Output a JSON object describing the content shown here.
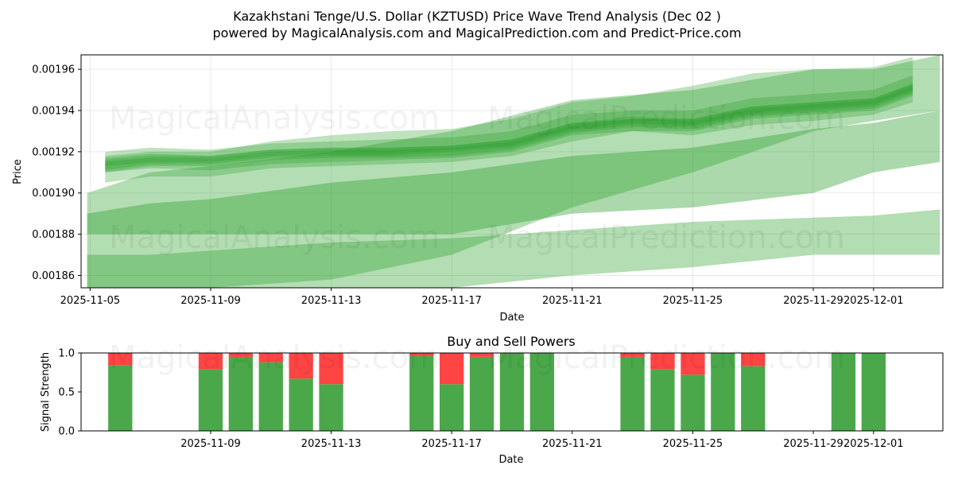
{
  "title": "Kazakhstani Tenge/U.S. Dollar (KZTUSD) Price Wave Trend Analysis (Dec 02 )",
  "subtitle": "powered by MagicalAnalysis.com and MagicalPrediction.com and Predict-Price.com",
  "watermarks": [
    "MagicalAnalysis.com",
    "MagicalPrediction.com"
  ],
  "colors": {
    "band": "#2ca02c",
    "buy": "#4aa84a",
    "sell": "#ff4444"
  },
  "chart_data": [
    {
      "type": "area",
      "title": "",
      "xlabel": "Date",
      "ylabel": "Price",
      "x_range_days": [
        -0.3,
        28.3
      ],
      "x_origin": "2025-11-05",
      "ylim": [
        0.001854,
        0.001967
      ],
      "x_ticks": [
        {
          "day": 0,
          "label": "2025-11-05"
        },
        {
          "day": 4,
          "label": "2025-11-09"
        },
        {
          "day": 8,
          "label": "2025-11-13"
        },
        {
          "day": 12,
          "label": "2025-11-17"
        },
        {
          "day": 16,
          "label": "2025-11-21"
        },
        {
          "day": 20,
          "label": "2025-11-25"
        },
        {
          "day": 24,
          "label": "2025-11-29"
        },
        {
          "day": 26,
          "label": "2025-12-01"
        }
      ],
      "y_ticks": [
        {
          "value": 0.00186,
          "label": "0.00186"
        },
        {
          "value": 0.00188,
          "label": "0.00188"
        },
        {
          "value": 0.0019,
          "label": "0.00190"
        },
        {
          "value": 0.00192,
          "label": "0.00192"
        },
        {
          "value": 0.00194,
          "label": "0.00194"
        },
        {
          "value": 0.00196,
          "label": "0.00196"
        }
      ],
      "grid": true,
      "bands": [
        {
          "name": "wide-upper",
          "opacity": 0.36,
          "x": [
            -0.1,
            2,
            4,
            8,
            12,
            16,
            20,
            24,
            26,
            28.2
          ],
          "lower": [
            0.00184,
            0.00185,
            0.00185,
            0.001858,
            0.00187,
            0.001893,
            0.00191,
            0.00193,
            0.001935,
            0.00194
          ],
          "upper": [
            0.0019,
            0.00191,
            0.001913,
            0.00192,
            0.00193,
            0.001945,
            0.00195,
            0.00196,
            0.00196,
            0.00197
          ]
        },
        {
          "name": "wide-lower",
          "opacity": 0.36,
          "x": [
            -0.1,
            2,
            4,
            8,
            12,
            16,
            20,
            24,
            26,
            28.2
          ],
          "lower": [
            0.00185,
            0.00185,
            0.00185,
            0.00185,
            0.00185,
            0.00186,
            0.001864,
            0.00187,
            0.00187,
            0.00187
          ],
          "upper": [
            0.00187,
            0.00187,
            0.001872,
            0.001876,
            0.001878,
            0.001882,
            0.001886,
            0.001888,
            0.001889,
            0.001892
          ]
        },
        {
          "name": "mid-channel",
          "opacity": 0.4,
          "x": [
            -0.1,
            2,
            4,
            8,
            12,
            16,
            20,
            24,
            26,
            28.2
          ],
          "lower": [
            0.00188,
            0.00188,
            0.00188,
            0.00188,
            0.00188,
            0.00189,
            0.001893,
            0.0019,
            0.00191,
            0.001915
          ],
          "upper": [
            0.00189,
            0.001895,
            0.001897,
            0.001905,
            0.00191,
            0.001918,
            0.001922,
            0.001931,
            0.001934,
            0.00194
          ]
        },
        {
          "name": "core-1",
          "opacity": 0.3,
          "x": [
            0.5,
            2,
            4,
            6,
            8,
            10,
            12,
            14,
            16,
            18,
            20,
            22,
            24,
            26,
            27.3
          ],
          "lower": [
            0.001905,
            0.001908,
            0.001908,
            0.001912,
            0.001913,
            0.001914,
            0.001915,
            0.001918,
            0.001925,
            0.00193,
            0.001928,
            0.001933,
            0.001935,
            0.001938,
            0.001944
          ],
          "upper": [
            0.001918,
            0.00192,
            0.00192,
            0.001925,
            0.001928,
            0.00193,
            0.001931,
            0.001936,
            0.001944,
            0.001947,
            0.001952,
            0.001958,
            0.00196,
            0.001961,
            0.001966
          ]
        },
        {
          "name": "core-2",
          "opacity": 0.3,
          "x": [
            0.5,
            2,
            4,
            6,
            8,
            10,
            12,
            14,
            16,
            18,
            20,
            22,
            24,
            26,
            27.3
          ],
          "lower": [
            0.00191,
            0.001912,
            0.001911,
            0.001914,
            0.001915,
            0.001916,
            0.001917,
            0.00192,
            0.001928,
            0.00193,
            0.00193,
            0.001936,
            0.001938,
            0.00194,
            0.001947
          ],
          "upper": [
            0.00192,
            0.001922,
            0.001921,
            0.001924,
            0.001925,
            0.001926,
            0.001927,
            0.00193,
            0.001938,
            0.00194,
            0.00194,
            0.001946,
            0.001948,
            0.00195,
            0.001957
          ]
        },
        {
          "name": "core-3",
          "opacity": 0.3,
          "x": [
            0.5,
            2,
            4,
            6,
            8,
            10,
            12,
            14,
            16,
            18,
            20,
            22,
            24,
            26,
            27.3
          ],
          "lower": [
            0.00191,
            0.001913,
            0.001913,
            0.001916,
            0.001917,
            0.001917,
            0.001918,
            0.001921,
            0.001929,
            0.001932,
            0.001931,
            0.001937,
            0.001939,
            0.001941,
            0.001948
          ],
          "upper": [
            0.001917,
            0.001919,
            0.001918,
            0.001921,
            0.001922,
            0.001922,
            0.001923,
            0.001926,
            0.001934,
            0.001937,
            0.001936,
            0.001942,
            0.001944,
            0.001946,
            0.001953
          ]
        },
        {
          "name": "core-4",
          "opacity": 0.3,
          "x": [
            0.5,
            2,
            4,
            6,
            8,
            10,
            12,
            14,
            16,
            18,
            20,
            22,
            24,
            26,
            27.3
          ],
          "lower": [
            0.001911,
            0.001914,
            0.001914,
            0.001917,
            0.001918,
            0.001918,
            0.00192,
            0.001922,
            0.00193,
            0.001933,
            0.001932,
            0.001938,
            0.00194,
            0.001942,
            0.001949
          ],
          "upper": [
            0.001915,
            0.001917,
            0.001917,
            0.00192,
            0.001921,
            0.001921,
            0.001922,
            0.001925,
            0.001933,
            0.001936,
            0.001935,
            0.001941,
            0.001943,
            0.001945,
            0.001952
          ]
        },
        {
          "name": "core-5",
          "opacity": 0.3,
          "x": [
            0.5,
            2,
            4,
            6,
            8,
            10,
            12,
            14,
            16,
            18,
            20,
            22,
            24,
            26,
            27.3
          ],
          "lower": [
            0.001913,
            0.001915,
            0.001915,
            0.001918,
            0.001919,
            0.001919,
            0.001921,
            0.001923,
            0.001931,
            0.001934,
            0.001933,
            0.001939,
            0.001941,
            0.001943,
            0.00195
          ],
          "upper": [
            0.001916,
            0.001918,
            0.001918,
            0.001921,
            0.001922,
            0.001922,
            0.001923,
            0.001926,
            0.001934,
            0.001936,
            0.001936,
            0.001942,
            0.001944,
            0.001946,
            0.001953
          ]
        }
      ]
    },
    {
      "type": "bar",
      "title": "Buy and Sell Powers",
      "xlabel": "Date",
      "ylabel": "Signal Strength",
      "ylim": [
        0,
        1
      ],
      "x_range_days": [
        -0.3,
        28.3
      ],
      "x_origin": "2025-11-05",
      "x_ticks": [
        {
          "day": 4,
          "label": "2025-11-09"
        },
        {
          "day": 8,
          "label": "2025-11-13"
        },
        {
          "day": 12,
          "label": "2025-11-17"
        },
        {
          "day": 16,
          "label": "2025-11-21"
        },
        {
          "day": 20,
          "label": "2025-11-25"
        },
        {
          "day": 24,
          "label": "2025-11-29"
        },
        {
          "day": 26,
          "label": "2025-12-01"
        }
      ],
      "y_ticks": [
        {
          "value": 0,
          "label": "0.0"
        },
        {
          "value": 0.5,
          "label": "0.5"
        },
        {
          "value": 1,
          "label": "1.0"
        }
      ],
      "bars": [
        {
          "day": 1,
          "buy": 0.84
        },
        {
          "day": 4,
          "buy": 0.79
        },
        {
          "day": 5,
          "buy": 0.95
        },
        {
          "day": 6,
          "buy": 0.88
        },
        {
          "day": 7,
          "buy": 0.67
        },
        {
          "day": 8,
          "buy": 0.6
        },
        {
          "day": 11,
          "buy": 0.96
        },
        {
          "day": 12,
          "buy": 0.6
        },
        {
          "day": 13,
          "buy": 0.95
        },
        {
          "day": 14,
          "buy": 1.0
        },
        {
          "day": 15,
          "buy": 1.0
        },
        {
          "day": 18,
          "buy": 0.95
        },
        {
          "day": 19,
          "buy": 0.79
        },
        {
          "day": 20,
          "buy": 0.72
        },
        {
          "day": 21,
          "buy": 1.0
        },
        {
          "day": 22,
          "buy": 0.83
        },
        {
          "day": 25,
          "buy": 1.0
        },
        {
          "day": 26,
          "buy": 1.0
        }
      ]
    }
  ]
}
